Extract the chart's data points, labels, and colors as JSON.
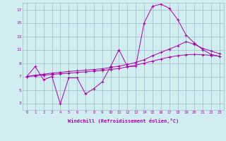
{
  "xlabel": "Windchill (Refroidissement éolien,°C)",
  "xlim": [
    -0.5,
    23.5
  ],
  "ylim": [
    2,
    18
  ],
  "xticks": [
    0,
    1,
    2,
    3,
    4,
    5,
    6,
    7,
    8,
    9,
    10,
    11,
    12,
    13,
    14,
    15,
    16,
    17,
    18,
    19,
    20,
    21,
    22,
    23
  ],
  "yticks": [
    3,
    5,
    7,
    9,
    11,
    13,
    15,
    17
  ],
  "background_color": "#d0eef0",
  "grid_color": "#a0b8c8",
  "line_color": "#aa00aa",
  "line1_x": [
    0,
    1,
    2,
    3,
    4,
    5,
    6,
    7,
    8,
    9,
    10,
    11,
    12,
    13,
    14,
    15,
    16,
    17,
    18,
    19,
    20,
    21,
    22,
    23
  ],
  "line1_y": [
    7.0,
    8.5,
    6.5,
    7.0,
    2.9,
    6.8,
    6.8,
    4.4,
    5.2,
    6.2,
    8.5,
    11.0,
    8.5,
    8.5,
    15.0,
    17.5,
    17.8,
    17.2,
    15.5,
    13.2,
    12.0,
    11.0,
    10.3,
    10.0
  ],
  "line2_x": [
    0,
    1,
    2,
    3,
    4,
    5,
    6,
    7,
    8,
    9,
    10,
    11,
    12,
    13,
    14,
    15,
    16,
    17,
    18,
    19,
    20,
    21,
    22,
    23
  ],
  "line2_y": [
    7.0,
    7.2,
    7.35,
    7.5,
    7.62,
    7.75,
    7.85,
    7.95,
    8.05,
    8.15,
    8.35,
    8.55,
    8.8,
    9.1,
    9.5,
    10.1,
    10.6,
    11.1,
    11.6,
    12.2,
    11.8,
    11.2,
    10.8,
    10.4
  ],
  "line3_x": [
    0,
    1,
    2,
    3,
    4,
    5,
    6,
    7,
    8,
    9,
    10,
    11,
    12,
    13,
    14,
    15,
    16,
    17,
    18,
    19,
    20,
    21,
    22,
    23
  ],
  "line3_y": [
    7.0,
    7.1,
    7.2,
    7.3,
    7.4,
    7.5,
    7.6,
    7.7,
    7.8,
    7.9,
    8.05,
    8.2,
    8.45,
    8.7,
    9.0,
    9.3,
    9.6,
    9.9,
    10.1,
    10.25,
    10.3,
    10.25,
    10.15,
    10.05
  ]
}
